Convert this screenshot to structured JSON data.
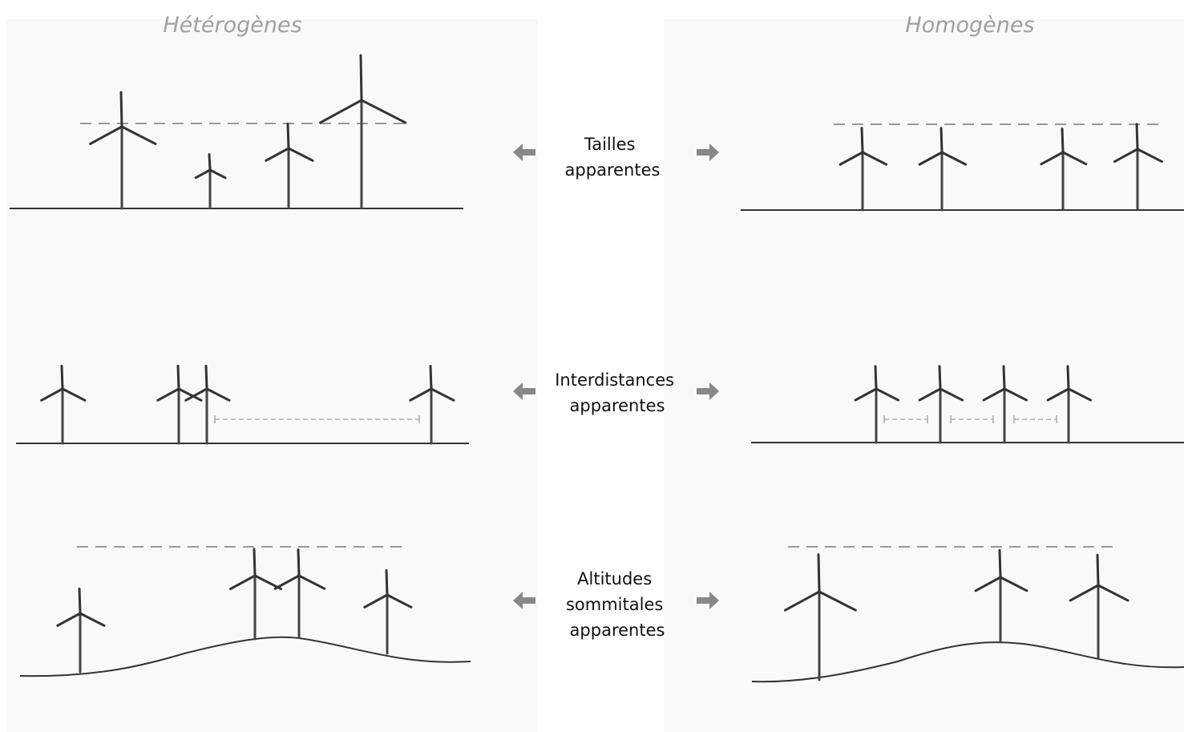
{
  "header": {
    "left_title": "Hétérogènes",
    "right_title": "Homogènes"
  },
  "rows": [
    {
      "label_lines": [
        "Tailles",
        "apparentes"
      ]
    },
    {
      "label_lines": [
        "Interdistances",
        "apparentes"
      ]
    },
    {
      "label_lines": [
        "Altitudes",
        "sommitales",
        "apparentes"
      ]
    }
  ]
}
